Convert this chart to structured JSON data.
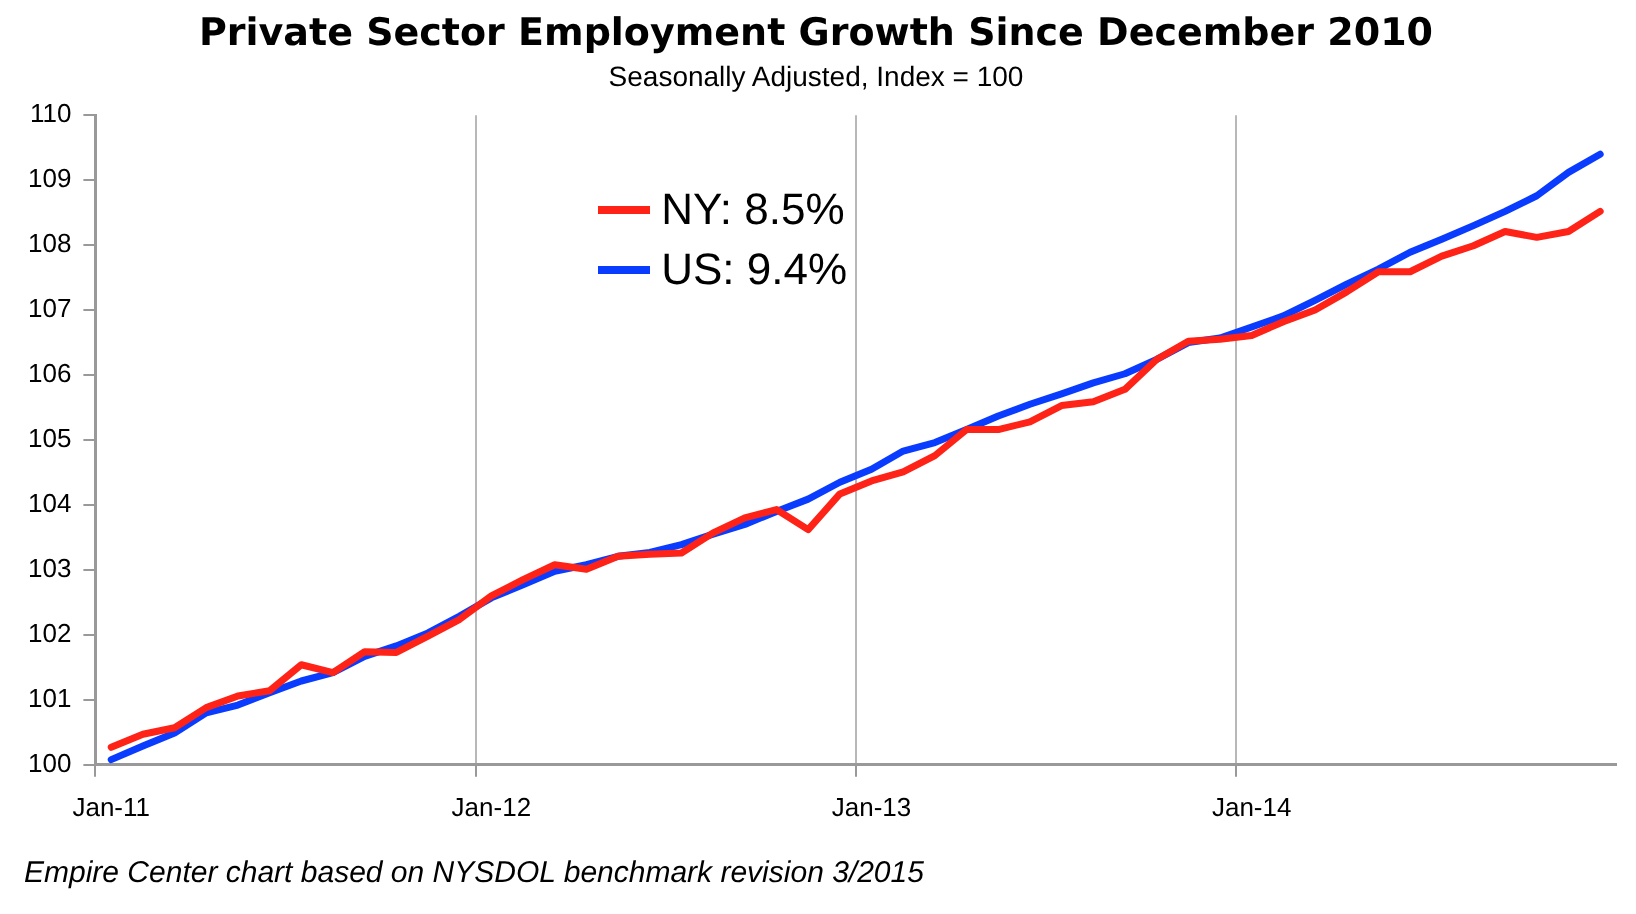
{
  "chart_data": {
    "type": "line",
    "title": "Private Sector Employment Growth Since December 2010",
    "subtitle": "Seasonally Adjusted, Index = 100",
    "categories": [
      "Jan-11",
      null,
      null,
      null,
      null,
      null,
      null,
      null,
      null,
      null,
      null,
      null,
      "Jan-12",
      null,
      null,
      null,
      null,
      null,
      null,
      null,
      null,
      null,
      null,
      null,
      "Jan-13",
      null,
      null,
      null,
      null,
      null,
      null,
      null,
      null,
      null,
      null,
      null,
      "Jan-14",
      null,
      null,
      null,
      null,
      null,
      null,
      null,
      null,
      null,
      null,
      null
    ],
    "series": [
      {
        "name": "NY: 8.5%",
        "color": "#ff2216",
        "values": [
          100.27,
          100.47,
          100.57,
          100.88,
          101.06,
          101.14,
          101.54,
          101.42,
          101.74,
          101.73,
          101.98,
          102.24,
          102.6,
          102.85,
          103.08,
          103.01,
          103.21,
          103.24,
          103.26,
          103.57,
          103.8,
          103.93,
          103.62,
          104.17,
          104.37,
          104.51,
          104.76,
          105.16,
          105.16,
          105.28,
          105.53,
          105.59,
          105.78,
          106.24,
          106.52,
          106.55,
          106.61,
          106.82,
          107.0,
          107.28,
          107.59,
          107.59,
          107.83,
          107.99,
          108.21,
          108.12,
          108.21,
          108.52
        ]
      },
      {
        "name": "US: 9.4%",
        "color": "#0a3cff",
        "values": [
          100.08,
          100.29,
          100.49,
          100.8,
          100.92,
          101.11,
          101.29,
          101.42,
          101.67,
          101.83,
          102.03,
          102.29,
          102.57,
          102.77,
          102.98,
          103.08,
          103.21,
          103.27,
          103.39,
          103.55,
          103.7,
          103.9,
          104.09,
          104.35,
          104.55,
          104.83,
          104.96,
          105.16,
          105.37,
          105.55,
          105.71,
          105.88,
          106.02,
          106.24,
          106.5,
          106.57,
          106.74,
          106.91,
          107.15,
          107.4,
          107.63,
          107.89,
          108.09,
          108.3,
          108.52,
          108.76,
          109.12,
          109.4
        ]
      }
    ],
    "ylim": [
      100,
      110
    ],
    "yticks": [
      100,
      101,
      102,
      103,
      104,
      105,
      106,
      107,
      108,
      109,
      110
    ],
    "grid": "x",
    "legend": "top left",
    "marker": "none",
    "line_style": "solid",
    "annotations": [
      "Empire Center chart based on NYSDOL benchmark revision 3/2015"
    ]
  }
}
